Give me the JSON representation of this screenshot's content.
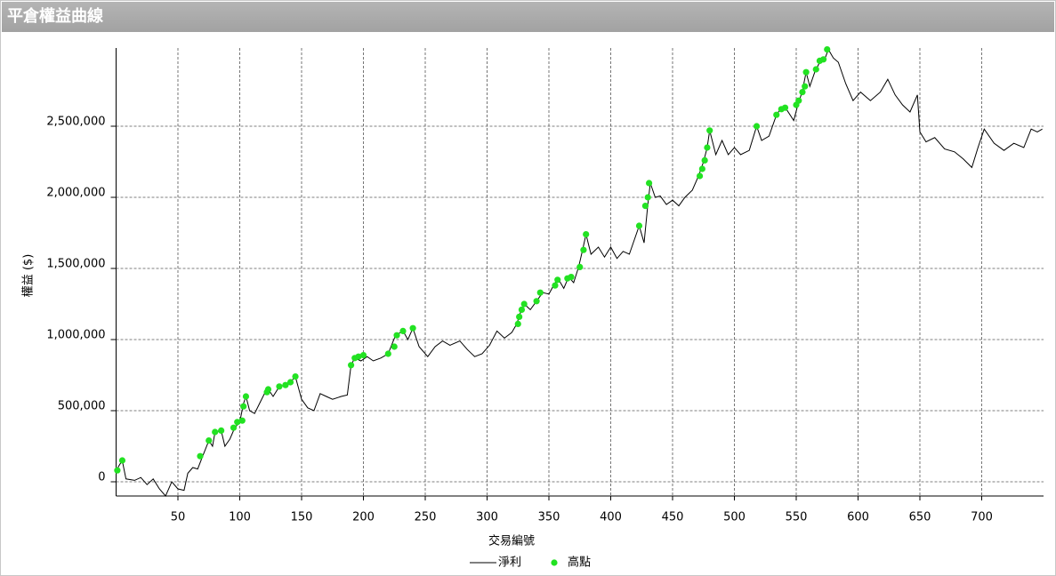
{
  "header": {
    "title": "平倉權益曲線"
  },
  "chart_data": {
    "type": "line",
    "x_label": "交易編號",
    "y_label": "權益 ($)",
    "xlim": [
      0,
      750
    ],
    "ylim": [
      -100000,
      3050000
    ],
    "xticks": [
      50,
      100,
      150,
      200,
      250,
      300,
      350,
      400,
      450,
      500,
      550,
      600,
      650,
      700
    ],
    "yticks": [
      0,
      {
        "value": 500000,
        "label": "500,000"
      },
      {
        "value": 1000000,
        "label": "1,000,000"
      },
      {
        "value": 1500000,
        "label": "1,500,000"
      },
      {
        "value": 2000000,
        "label": "2,000,000"
      },
      {
        "value": 2500000,
        "label": "2,500,000"
      }
    ],
    "grid": true,
    "series": [
      {
        "name": "淨利",
        "color": "#000000",
        "style": "line",
        "x": [
          0,
          5,
          8,
          15,
          20,
          25,
          30,
          35,
          40,
          45,
          50,
          55,
          58,
          62,
          66,
          70,
          75,
          78,
          80,
          85,
          88,
          92,
          96,
          100,
          103,
          105,
          108,
          112,
          116,
          120,
          123,
          127,
          132,
          137,
          141,
          145,
          150,
          155,
          160,
          165,
          170,
          175,
          182,
          187,
          190,
          193,
          198,
          203,
          208,
          214,
          220,
          226,
          232,
          236,
          240,
          245,
          252,
          258,
          264,
          270,
          278,
          284,
          290,
          296,
          302,
          308,
          314,
          320,
          324,
          327,
          330,
          335,
          340,
          345,
          350,
          355,
          358,
          362,
          366,
          370,
          374,
          377,
          380,
          384,
          390,
          395,
          400,
          405,
          410,
          415,
          423,
          427,
          430,
          432,
          436,
          440,
          445,
          450,
          455,
          460,
          466,
          471,
          475,
          478,
          480,
          485,
          490,
          495,
          500,
          505,
          512,
          518,
          522,
          528,
          534,
          538,
          542,
          548,
          551,
          555,
          558,
          561,
          565,
          569,
          573,
          576,
          580,
          584,
          590,
          596,
          602,
          610,
          618,
          624,
          630,
          636,
          642,
          648,
          650,
          655,
          662,
          670,
          678,
          685,
          692,
          697,
          702,
          710,
          718,
          726,
          734,
          740,
          745,
          749
        ],
        "values": [
          80000,
          150000,
          20000,
          10000,
          30000,
          -20000,
          20000,
          -50000,
          -100000,
          0,
          -50000,
          -60000,
          60000,
          100000,
          90000,
          180000,
          290000,
          250000,
          350000,
          360000,
          250000,
          300000,
          380000,
          420000,
          550000,
          600000,
          500000,
          480000,
          550000,
          620000,
          650000,
          600000,
          670000,
          680000,
          700000,
          740000,
          580000,
          520000,
          500000,
          620000,
          600000,
          580000,
          600000,
          610000,
          820000,
          870000,
          850000,
          880000,
          850000,
          870000,
          900000,
          1030000,
          1060000,
          1000000,
          1080000,
          950000,
          880000,
          950000,
          990000,
          960000,
          990000,
          930000,
          880000,
          900000,
          960000,
          1060000,
          1010000,
          1050000,
          1110000,
          1190000,
          1250000,
          1210000,
          1270000,
          1330000,
          1320000,
          1400000,
          1420000,
          1360000,
          1440000,
          1400000,
          1510000,
          1620000,
          1740000,
          1600000,
          1650000,
          1580000,
          1650000,
          1570000,
          1620000,
          1600000,
          1800000,
          1680000,
          1950000,
          2100000,
          2000000,
          2010000,
          1950000,
          1980000,
          1940000,
          2000000,
          2050000,
          2150000,
          2250000,
          2350000,
          2470000,
          2300000,
          2400000,
          2300000,
          2350000,
          2300000,
          2330000,
          2500000,
          2400000,
          2430000,
          2580000,
          2630000,
          2620000,
          2540000,
          2640000,
          2750000,
          2880000,
          2780000,
          2880000,
          2950000,
          2970000,
          3040000,
          2980000,
          2950000,
          2800000,
          2680000,
          2740000,
          2680000,
          2740000,
          2830000,
          2720000,
          2650000,
          2600000,
          2720000,
          2460000,
          2390000,
          2420000,
          2340000,
          2320000,
          2270000,
          2210000,
          2350000,
          2480000,
          2380000,
          2330000,
          2380000,
          2350000,
          2480000,
          2460000,
          2480000
        ]
      },
      {
        "name": "高點",
        "color": "#22e222",
        "style": "dot",
        "x": [
          1,
          5,
          68,
          75,
          80,
          85,
          95,
          98,
          102,
          103,
          105,
          122,
          123,
          132,
          137,
          141,
          145,
          190,
          193,
          196,
          200,
          220,
          225,
          227,
          232,
          240,
          325,
          326,
          328,
          330,
          340,
          343,
          355,
          357,
          365,
          368,
          375,
          378,
          380,
          423,
          428,
          430,
          431,
          472,
          474,
          476,
          478,
          480,
          518,
          534,
          538,
          541,
          550,
          552,
          555,
          557,
          558,
          566,
          569,
          572,
          575
        ],
        "values": [
          80000,
          150000,
          180000,
          290000,
          350000,
          360000,
          380000,
          420000,
          430000,
          530000,
          600000,
          630000,
          650000,
          670000,
          680000,
          700000,
          740000,
          820000,
          870000,
          880000,
          890000,
          900000,
          950000,
          1030000,
          1060000,
          1080000,
          1110000,
          1160000,
          1210000,
          1250000,
          1270000,
          1330000,
          1380000,
          1420000,
          1430000,
          1440000,
          1510000,
          1630000,
          1740000,
          1800000,
          1940000,
          2000000,
          2100000,
          2150000,
          2200000,
          2260000,
          2350000,
          2470000,
          2500000,
          2580000,
          2620000,
          2630000,
          2650000,
          2680000,
          2740000,
          2780000,
          2880000,
          2900000,
          2960000,
          2970000,
          3040000
        ]
      }
    ]
  }
}
